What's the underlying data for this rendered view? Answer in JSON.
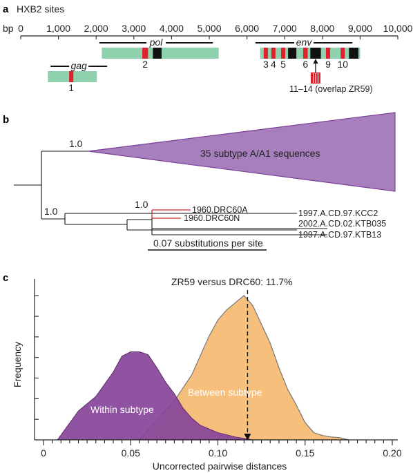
{
  "panel_a": {
    "label": "a",
    "title": "HXB2 sites",
    "axis_unit": "bp",
    "ticks": [
      0,
      1000,
      2000,
      3000,
      4000,
      5000,
      6000,
      7000,
      8000,
      9000,
      10000
    ],
    "tick_labels": [
      "0",
      "1,000",
      "2,000",
      "3,000",
      "4,000",
      "5,000",
      "6,000",
      "7,000",
      "8,000",
      "9,000",
      "10,000"
    ],
    "genes": [
      {
        "name": "gag",
        "start": 790,
        "end": 2292,
        "row": 2
      },
      {
        "name": "pol",
        "start": 2085,
        "end": 5096,
        "row": 1
      },
      {
        "name": "env",
        "start": 6225,
        "end": 8795,
        "row": 1
      }
    ],
    "fragments": [
      {
        "start": 720,
        "end": 2020,
        "row": 2
      },
      {
        "start": 2150,
        "end": 5250,
        "row": 1
      },
      {
        "start": 6350,
        "end": 9000,
        "row": 1
      }
    ],
    "sites": [
      {
        "label": "1",
        "pos": 1340,
        "width": 110,
        "color": "#e0202c",
        "row": 2
      },
      {
        "label": "2",
        "pos": 3300,
        "width": 150,
        "color": "#e0202c",
        "row": 1
      },
      {
        "label": "",
        "pos": 3620,
        "width": 230,
        "color": "#111111",
        "row": 1
      },
      {
        "label": "3",
        "pos": 6500,
        "width": 110,
        "color": "#e0202c",
        "row": 1
      },
      {
        "label": "4",
        "pos": 6700,
        "width": 110,
        "color": "#e0202c",
        "row": 1
      },
      {
        "label": "5",
        "pos": 6960,
        "width": 110,
        "color": "#e0202c",
        "row": 1
      },
      {
        "label": "",
        "pos": 7200,
        "width": 220,
        "color": "#111111",
        "row": 1
      },
      {
        "label": "6",
        "pos": 7550,
        "width": 120,
        "color": "#e0202c",
        "row": 1
      },
      {
        "label": "",
        "pos": 7820,
        "width": 280,
        "color": "#111111",
        "row": 1
      },
      {
        "label": "9",
        "pos": 8150,
        "width": 110,
        "color": "#e0202c",
        "row": 1
      },
      {
        "label": "10",
        "pos": 8540,
        "width": 110,
        "color": "#e0202c",
        "row": 1
      },
      {
        "label": "",
        "pos": 8830,
        "width": 250,
        "color": "#111111",
        "row": 1
      }
    ],
    "overlap_label": "11–14 (overlap ZR59)",
    "overlap_pos": 7820
  },
  "panel_b": {
    "label": "b",
    "clade_label": "35 subtype A/A1 sequences",
    "support_top": "1.0",
    "support_lower": "1.0",
    "support_drc": "1.0",
    "taxa": [
      "1960.DRC60A",
      "1960.DRC60N",
      "1997.A.CD.97.KCC2",
      "2002.A.CD.02.KTB035",
      "1997.A.CD.97.KTB13"
    ],
    "scale_label": "0.07 substitutions per site",
    "clade_color": "#a77fbd",
    "clade_stroke": "#7a3f98",
    "drc_color": "#d42a2a"
  },
  "panel_c": {
    "label": "c",
    "chart_data": {
      "type": "area",
      "title": "",
      "xlabel": "Uncorrected pairwise distances",
      "ylabel": "Frequency",
      "xlim": [
        0,
        0.2
      ],
      "ylim": [
        0,
        1
      ],
      "xticks": [
        0,
        0.05,
        0.1,
        0.15,
        0.2
      ],
      "xtick_labels": [
        "0",
        "0.05",
        "0.10",
        "0.15",
        "0.20"
      ],
      "series": [
        {
          "name": "Between subtype",
          "color": "#f7bf7c",
          "x": [
            0.055,
            0.065,
            0.075,
            0.085,
            0.095,
            0.1,
            0.105,
            0.11,
            0.115,
            0.12,
            0.125,
            0.13,
            0.135,
            0.14,
            0.145,
            0.15,
            0.155,
            0.16,
            0.165,
            0.17,
            0.175
          ],
          "y": [
            0.0,
            0.14,
            0.27,
            0.45,
            0.72,
            0.83,
            0.9,
            0.95,
            1.0,
            0.93,
            0.8,
            0.67,
            0.5,
            0.35,
            0.24,
            0.12,
            0.05,
            0.03,
            0.02,
            0.015,
            0.0
          ]
        },
        {
          "name": "Within subtype",
          "color": "#86449a",
          "x": [
            0.008,
            0.02,
            0.03,
            0.04,
            0.045,
            0.05,
            0.055,
            0.06,
            0.065,
            0.07,
            0.075,
            0.08,
            0.085,
            0.09,
            0.1,
            0.11,
            0.12
          ],
          "y": [
            0.0,
            0.2,
            0.3,
            0.47,
            0.58,
            0.61,
            0.61,
            0.59,
            0.5,
            0.4,
            0.32,
            0.22,
            0.15,
            0.1,
            0.05,
            0.02,
            0.0
          ]
        }
      ],
      "annotation": {
        "label": "ZR59 versus DRC60: 11.7%",
        "x": 0.117
      }
    }
  }
}
